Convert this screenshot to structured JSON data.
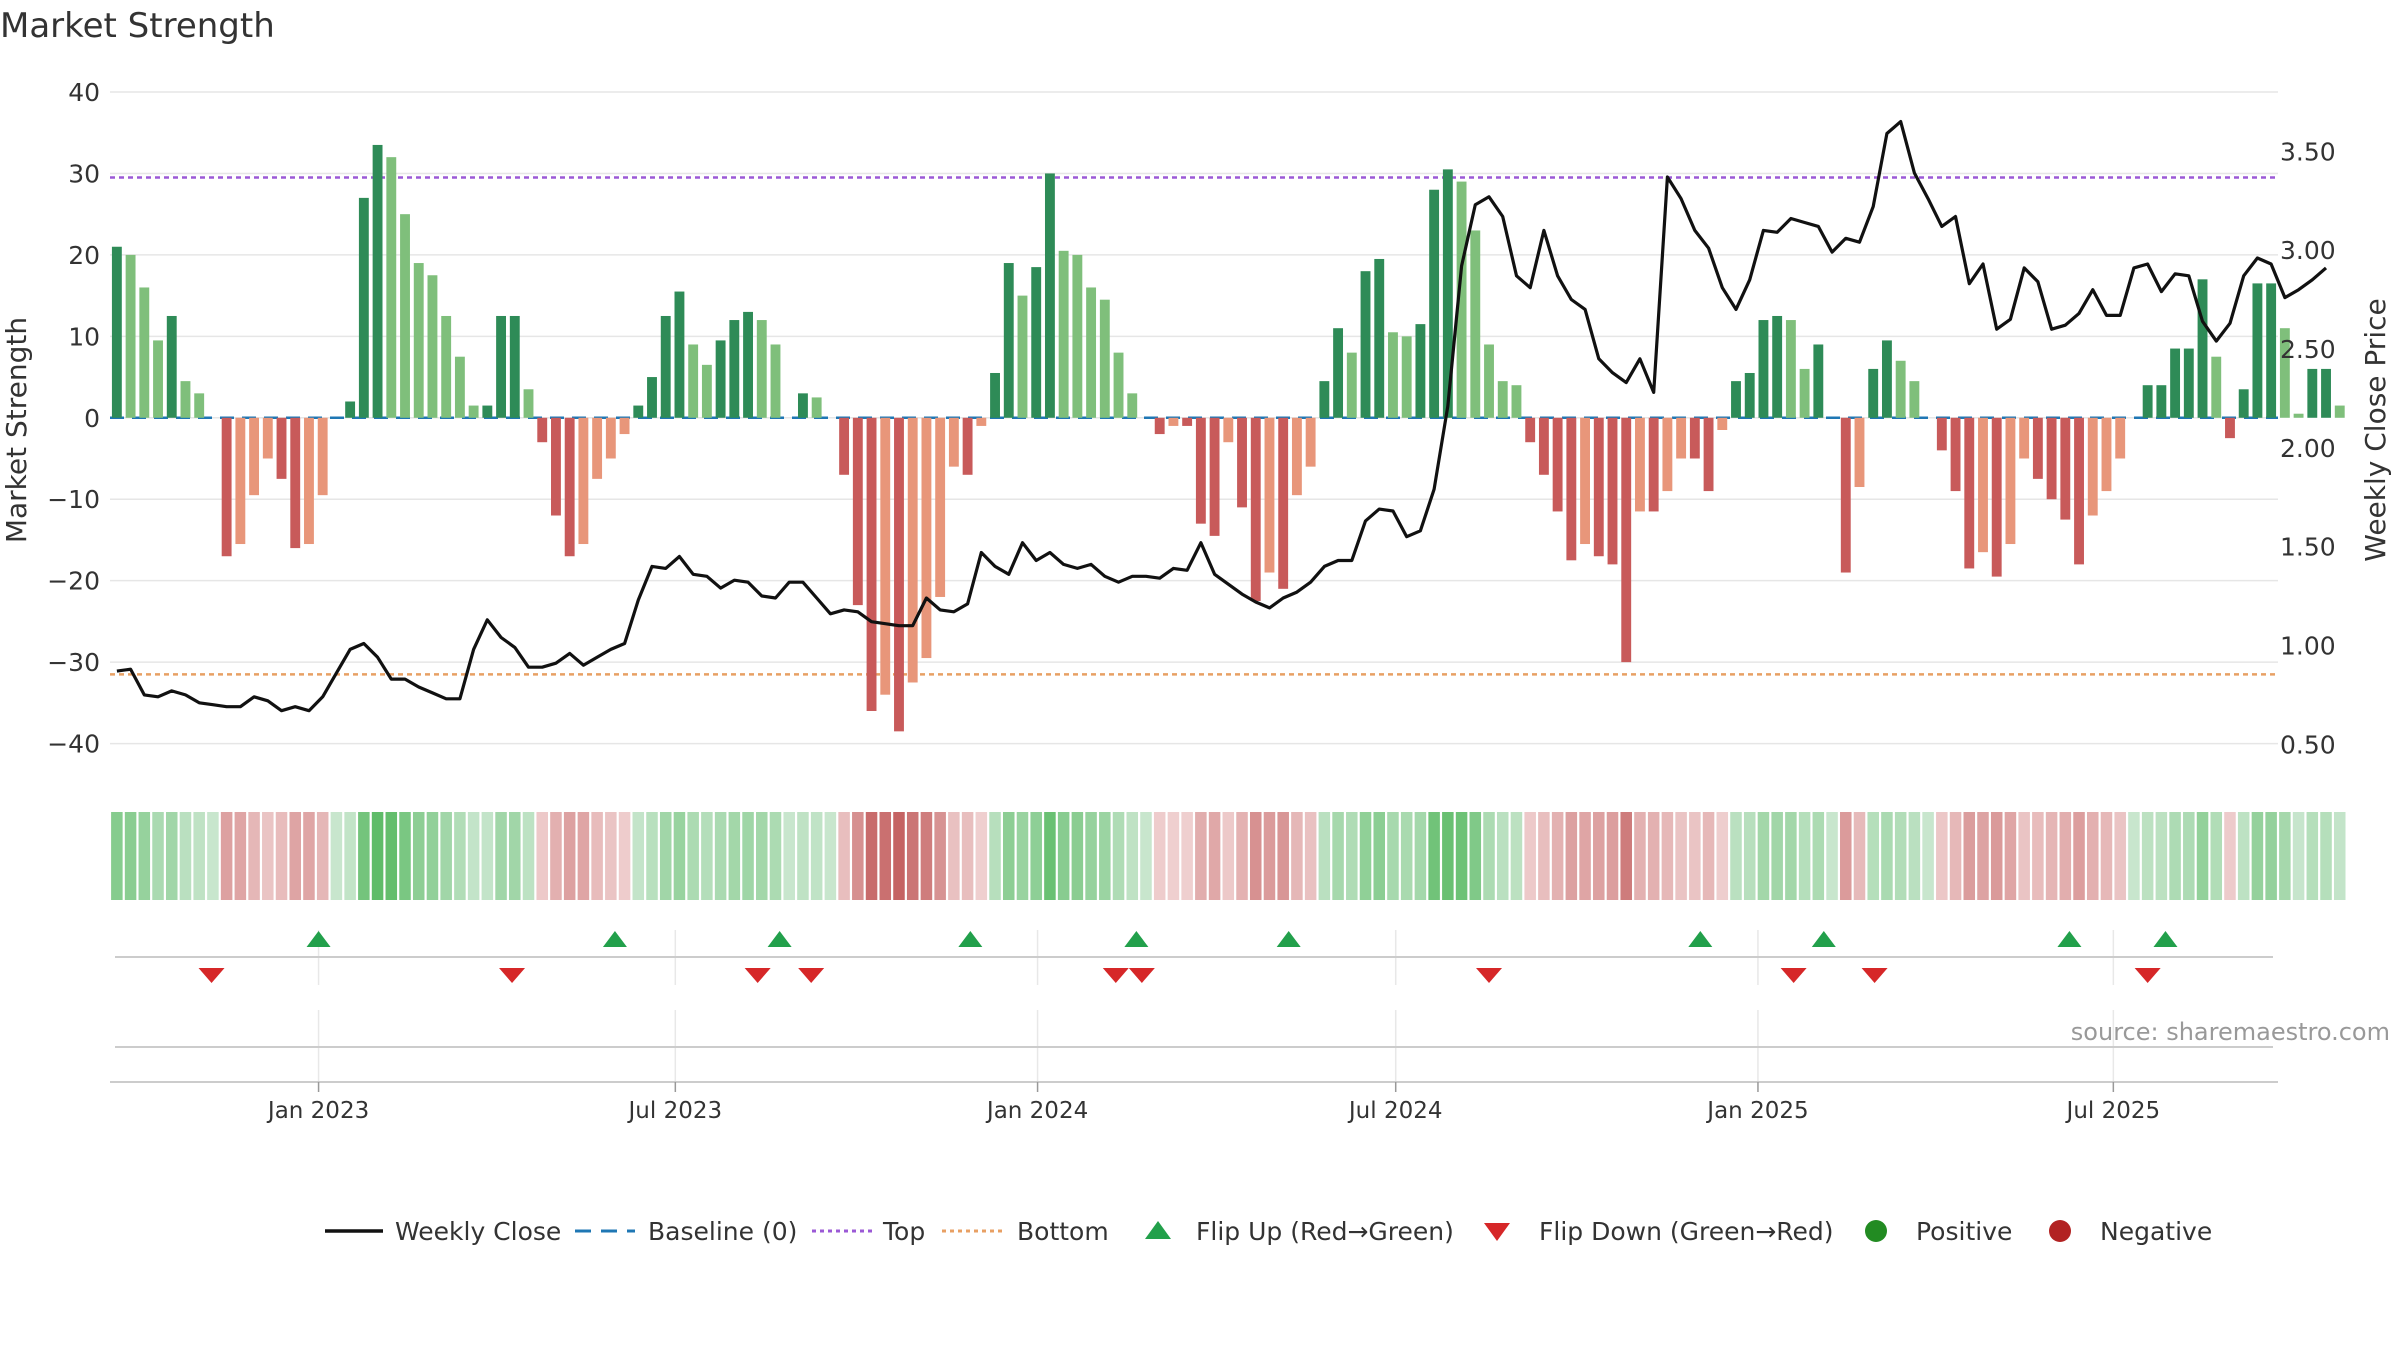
{
  "chart_data": {
    "type": "bar",
    "title": "Market Strength",
    "ylabel": "Market Strength",
    "y2label": "Weekly Close Price",
    "ylim": [
      -43,
      40
    ],
    "y2lim": [
      0.38,
      3.8
    ],
    "yticks": [
      40,
      30,
      20,
      10,
      0,
      -10,
      -20,
      -30,
      -40
    ],
    "y2ticks": [
      3.5,
      3.0,
      2.5,
      2.0,
      1.5,
      1.0,
      0.5
    ],
    "y2tick_labels": [
      "3.50",
      "3.00",
      "2.50",
      "2.00",
      "1.50",
      "1.00",
      "0.50"
    ],
    "xrange": [
      0,
      158
    ],
    "xticks": [
      {
        "label": "Jan 2023",
        "pos": 15.2
      },
      {
        "label": "Jul 2023",
        "pos": 41.2
      },
      {
        "label": "Jan 2024",
        "pos": 67.6
      },
      {
        "label": "Jul 2024",
        "pos": 93.7
      },
      {
        "label": "Jan 2025",
        "pos": 120.1
      },
      {
        "label": "Jul 2025",
        "pos": 146.0
      }
    ],
    "top_line": 29.5,
    "bottom_line": -31.5,
    "source_text": "source: sharemaestro.com",
    "bars": [
      21,
      20,
      16,
      9.5,
      12.5,
      4.5,
      3,
      0,
      -17,
      -15.5,
      -9.5,
      -5,
      -7.5,
      -16,
      -15.5,
      -9.5,
      0,
      2,
      27,
      33.5,
      32,
      25,
      19,
      17.5,
      12.5,
      7.5,
      1.5,
      1.5,
      12.5,
      12.5,
      3.5,
      -3,
      -12,
      -17,
      -15.5,
      -7.5,
      -5,
      -2,
      1.5,
      5,
      12.5,
      15.5,
      9,
      6.5,
      9.5,
      12,
      13,
      12,
      9,
      0,
      3,
      2.5,
      0,
      -7,
      -23,
      -36,
      -34,
      -38.5,
      -32.5,
      -29.5,
      -22,
      -6,
      -7,
      -1,
      5.5,
      19,
      15,
      18.5,
      30,
      20.5,
      20,
      16,
      14.5,
      8,
      3,
      0,
      -2,
      -1,
      -1,
      -13,
      -14.5,
      -3,
      -11,
      -22.5,
      -19,
      -21,
      -9.5,
      -6,
      4.5,
      11,
      8,
      18,
      19.5,
      10.5,
      10,
      11.5,
      28,
      30.5,
      29,
      23,
      9,
      4.5,
      4,
      -3,
      -7,
      -11.5,
      -17.5,
      -15.5,
      -17,
      -18,
      -30,
      -11.5,
      -11.5,
      -9,
      -5,
      -5,
      -9,
      -1.5,
      4.5,
      5.5,
      12,
      12.5,
      12,
      6,
      9,
      0,
      -19,
      -8.5,
      6,
      9.5,
      7,
      4.5,
      0,
      -4,
      -9,
      -18.5,
      -16.5,
      -19.5,
      -15.5,
      -5,
      -7.5,
      -10,
      -12.5,
      -18,
      -12,
      -9,
      -5,
      0,
      4,
      4,
      8.5,
      8.5,
      17,
      7.5,
      -2.5,
      3.5,
      16.5,
      16.5,
      11,
      0.5,
      6,
      6,
      1.5
    ],
    "close": [
      0.87,
      0.88,
      0.75,
      0.74,
      0.77,
      0.75,
      0.71,
      0.7,
      0.69,
      0.69,
      0.74,
      0.72,
      0.67,
      0.69,
      0.67,
      0.74,
      0.86,
      0.98,
      1.01,
      0.94,
      0.83,
      0.83,
      0.79,
      0.76,
      0.73,
      0.73,
      0.98,
      1.13,
      1.04,
      0.99,
      0.89,
      0.89,
      0.91,
      0.96,
      0.9,
      0.94,
      0.98,
      1.01,
      1.23,
      1.4,
      1.39,
      1.45,
      1.36,
      1.35,
      1.29,
      1.33,
      1.32,
      1.25,
      1.24,
      1.32,
      1.32,
      1.24,
      1.16,
      1.18,
      1.17,
      1.12,
      1.11,
      1.1,
      1.1,
      1.24,
      1.18,
      1.17,
      1.21,
      1.47,
      1.4,
      1.36,
      1.52,
      1.43,
      1.47,
      1.41,
      1.39,
      1.41,
      1.35,
      1.32,
      1.35,
      1.35,
      1.34,
      1.39,
      1.38,
      1.52,
      1.36,
      1.31,
      1.26,
      1.22,
      1.19,
      1.24,
      1.27,
      1.32,
      1.4,
      1.43,
      1.43,
      1.63,
      1.69,
      1.68,
      1.55,
      1.58,
      1.79,
      2.21,
      2.92,
      3.23,
      3.27,
      3.17,
      2.87,
      2.81,
      3.1,
      2.87,
      2.75,
      2.7,
      2.45,
      2.38,
      2.33,
      2.45,
      2.28,
      3.37,
      3.26,
      3.1,
      3.01,
      2.81,
      2.7,
      2.85,
      3.1,
      3.09,
      3.16,
      3.14,
      3.12,
      2.99,
      3.06,
      3.04,
      3.22,
      3.59,
      3.65,
      3.39,
      3.26,
      3.12,
      3.17,
      2.83,
      2.93,
      2.6,
      2.65,
      2.91,
      2.84,
      2.6,
      2.62,
      2.68,
      2.8,
      2.67,
      2.67,
      2.91,
      2.93,
      2.79,
      2.88,
      2.87,
      2.64,
      2.54,
      2.63,
      2.87,
      2.96,
      2.93,
      2.76,
      2.8,
      2.85,
      2.91
    ],
    "flip_up": [
      15.2,
      36.8,
      48.8,
      62.7,
      74.8,
      85.9,
      115.9,
      124.9,
      142.8,
      149.8
    ],
    "flip_down": [
      7.4,
      29.3,
      47.2,
      51.1,
      73.3,
      75.2,
      100.5,
      122.7,
      128.6,
      148.5
    ],
    "legend": [
      {
        "label": "Weekly Close",
        "marker": "line",
        "color": "#111111"
      },
      {
        "label": "Baseline (0)",
        "marker": "dash",
        "color": "#1f77b4"
      },
      {
        "label": "Top",
        "marker": "dot-line",
        "color": "#9b59d6"
      },
      {
        "label": "Bottom",
        "marker": "dot-line",
        "color": "#e8a064"
      },
      {
        "label": "Flip Up (Red→Green)",
        "marker": "up-triangle",
        "color": "#22a04b"
      },
      {
        "label": "Flip Down (Green→Red)",
        "marker": "down-triangle",
        "color": "#d62728"
      },
      {
        "label": "Positive",
        "marker": "circle",
        "color": "#228b22"
      },
      {
        "label": "Negative",
        "marker": "circle",
        "color": "#b22222"
      }
    ],
    "colors": {
      "pos_strong": "#2e8b57",
      "pos_light": "#7fbf7b",
      "neg_strong": "#c85a5a",
      "neg_light": "#e8967a",
      "grid": "#e6e6e6",
      "price": "#111111",
      "top": "#9b59d6",
      "bottom": "#e8a064",
      "baseline": "#1f77b4"
    }
  }
}
